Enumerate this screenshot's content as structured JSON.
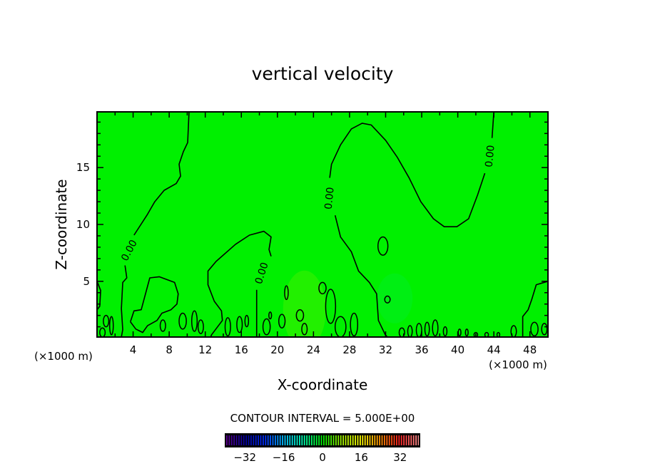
{
  "chart_data": {
    "type": "heatmap",
    "title": "vertical velocity",
    "xlabel": "X-coordinate",
    "ylabel": "Z-coordinate",
    "x_unit_left": "(×1000 m)",
    "x_unit_right": "(×1000 m)",
    "xlim": [
      0,
      50
    ],
    "ylim": [
      0.1,
      19.9
    ],
    "xticks": [
      4,
      8,
      12,
      16,
      20,
      24,
      28,
      32,
      36,
      40,
      44,
      48
    ],
    "xtick_labels": [
      "4",
      "8",
      "12",
      "16",
      "20",
      "24",
      "28",
      "32",
      "36",
      "40",
      "44",
      "48"
    ],
    "yticks": [
      5,
      10,
      15
    ],
    "ytick_labels": [
      "5",
      "10",
      "15"
    ],
    "field_color": "#00f000",
    "contour_interval_text": "CONTOUR INTERVAL = 5.000E+00",
    "contour_level_label": "0.00",
    "contours": [
      [
        [
          10.2,
          19.9
        ],
        [
          10.05,
          17.2
        ],
        [
          9.57,
          16.4
        ],
        [
          9.1,
          15.3
        ],
        [
          9.26,
          14.25
        ],
        [
          8.78,
          13.6
        ],
        [
          7.44,
          13
        ],
        [
          6.4,
          12
        ],
        [
          5.6,
          10.9
        ],
        [
          4.1,
          9.06
        ]
      ],
      [
        [
          3.1,
          6.4
        ],
        [
          3.3,
          5.3
        ],
        [
          2.85,
          4.9
        ],
        [
          2.7,
          2.6
        ],
        [
          2.85,
          0.75
        ],
        [
          2.7,
          0.1
        ]
      ],
      [
        [
          17.7,
          0.1
        ],
        [
          17.7,
          4.25
        ]
      ],
      [
        [
          19.3,
          7.2
        ],
        [
          19.07,
          7.8
        ],
        [
          19.3,
          8.9
        ],
        [
          18.5,
          9.4
        ],
        [
          16.9,
          9.06
        ],
        [
          15.35,
          8.25
        ],
        [
          13.2,
          6.75
        ],
        [
          12.3,
          5.9
        ],
        [
          12.3,
          4.7
        ],
        [
          13,
          3.25
        ],
        [
          13.8,
          2.4
        ],
        [
          13.9,
          1.56
        ],
        [
          12.7,
          0.3
        ],
        [
          12.6,
          0.1
        ]
      ],
      [
        [
          3.7,
          1.44
        ],
        [
          4.1,
          2.4
        ],
        [
          4.9,
          2.5
        ],
        [
          5.85,
          5.3
        ],
        [
          6.9,
          5.4
        ],
        [
          8.6,
          4.9
        ],
        [
          9.0,
          3.9
        ],
        [
          8.86,
          3.0
        ],
        [
          8.2,
          2.5
        ],
        [
          7.2,
          2.2
        ],
        [
          6.65,
          1.56
        ],
        [
          5.6,
          1.1
        ],
        [
          5.06,
          0.5
        ],
        [
          4.3,
          0.8
        ],
        [
          3.7,
          1.44
        ]
      ],
      [
        [
          32.2,
          0.1
        ],
        [
          31.96,
          0.3
        ],
        [
          31.2,
          1.56
        ],
        [
          31.0,
          3.9
        ],
        [
          30.2,
          4.9
        ],
        [
          29.0,
          5.9
        ],
        [
          28.2,
          7.6
        ],
        [
          27.0,
          8.9
        ],
        [
          26.4,
          10.8
        ]
      ],
      [
        [
          25.8,
          14.1
        ],
        [
          26.0,
          15.3
        ],
        [
          27.0,
          17.0
        ],
        [
          28.2,
          18.4
        ],
        [
          29.4,
          18.9
        ],
        [
          30.4,
          18.75
        ],
        [
          32.0,
          17.4
        ],
        [
          33.3,
          15.9
        ],
        [
          34.6,
          14.1
        ],
        [
          35.9,
          12.0
        ],
        [
          37.3,
          10.5
        ],
        [
          38.5,
          9.8
        ],
        [
          39.9,
          9.8
        ],
        [
          41.2,
          10.5
        ],
        [
          42.2,
          12.6
        ],
        [
          43.0,
          14.5
        ]
      ],
      [
        [
          43.8,
          17.6
        ],
        [
          44.0,
          19.9
        ]
      ],
      [
        [
          50,
          5
        ],
        [
          48.7,
          4.7
        ],
        [
          48.2,
          3.4
        ],
        [
          47.8,
          2.5
        ],
        [
          47.2,
          1.9
        ],
        [
          47.2,
          0.1
        ]
      ],
      [
        [
          0,
          5
        ],
        [
          0.4,
          4.2
        ],
        [
          0.3,
          2.8
        ],
        [
          0,
          2.5
        ]
      ]
    ],
    "contour_labels": [
      [
        3.6,
        7.7
      ],
      [
        18.3,
        5.7
      ],
      [
        25.8,
        12.3
      ],
      [
        43.6,
        16.0
      ]
    ],
    "small_contours": [
      [
        31.7,
        8.1,
        0.55,
        0.8
      ],
      [
        25.0,
        4.4,
        0.4,
        0.5
      ],
      [
        32.2,
        3.4,
        0.3,
        0.3
      ],
      [
        25.9,
        2.8,
        0.55,
        1.5
      ],
      [
        21.0,
        4.0,
        0.2,
        0.6
      ],
      [
        19.2,
        2.0,
        0.15,
        0.3
      ],
      [
        20.5,
        1.5,
        0.35,
        0.6
      ],
      [
        22.5,
        2.0,
        0.4,
        0.5
      ],
      [
        1.0,
        1.5,
        0.3,
        0.5
      ],
      [
        1.6,
        1.1,
        0.2,
        0.8
      ],
      [
        9.5,
        1.5,
        0.4,
        0.7
      ],
      [
        10.8,
        1.5,
        0.3,
        0.9
      ],
      [
        11.5,
        1.0,
        0.3,
        0.6
      ],
      [
        14.5,
        1.0,
        0.3,
        0.8
      ],
      [
        15.8,
        1.2,
        0.3,
        0.7
      ],
      [
        16.6,
        1.5,
        0.2,
        0.5
      ],
      [
        18.8,
        1.0,
        0.4,
        0.7
      ],
      [
        23.0,
        0.8,
        0.3,
        0.5
      ],
      [
        27.0,
        1.0,
        0.6,
        0.9
      ],
      [
        28.5,
        1.2,
        0.4,
        1.0
      ],
      [
        33.8,
        0.5,
        0.3,
        0.4
      ],
      [
        34.7,
        0.6,
        0.25,
        0.5
      ],
      [
        35.7,
        0.7,
        0.3,
        0.6
      ],
      [
        36.6,
        0.8,
        0.25,
        0.6
      ],
      [
        37.5,
        0.9,
        0.3,
        0.7
      ],
      [
        38.6,
        0.6,
        0.2,
        0.4
      ],
      [
        40.2,
        0.5,
        0.15,
        0.3
      ],
      [
        41.0,
        0.5,
        0.15,
        0.3
      ],
      [
        42.0,
        0.3,
        0.2,
        0.2
      ],
      [
        43.2,
        0.3,
        0.2,
        0.2
      ],
      [
        44.5,
        0.3,
        0.15,
        0.2
      ],
      [
        46.2,
        0.6,
        0.3,
        0.5
      ],
      [
        48.5,
        0.8,
        0.4,
        0.6
      ],
      [
        49.6,
        0.8,
        0.3,
        0.5
      ],
      [
        0.6,
        0.5,
        0.3,
        0.4
      ],
      [
        7.3,
        1.1,
        0.3,
        0.5
      ]
    ],
    "colorbar": {
      "range": [
        -40,
        40
      ],
      "step": 1,
      "ticks": [
        -32,
        -16,
        0,
        16,
        32
      ],
      "tick_labels": [
        "−32",
        "−16",
        "0",
        "16",
        "32"
      ],
      "colors": [
        "#5a0090",
        "#0000a0",
        "#0030ff",
        "#00c0ff",
        "#00ffb0",
        "#00f000",
        "#a0f000",
        "#ffff00",
        "#ff9000",
        "#ff2020",
        "#ff9090"
      ]
    }
  }
}
